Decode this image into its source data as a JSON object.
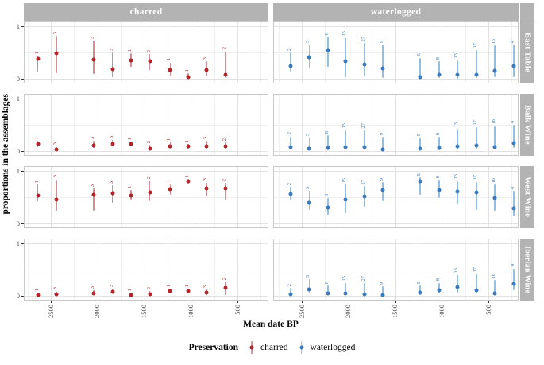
{
  "chart_data": {
    "type": "pointrange",
    "col_facets": [
      "charred",
      "waterlogged"
    ],
    "row_facets": [
      "East Table",
      "Balk Wine",
      "West Wine",
      "Iberian Wine"
    ],
    "x_label": "Mean date BP",
    "y_label": "proportions in the assemblages",
    "x_ticks": [
      2500,
      2000,
      1500,
      1000,
      500
    ],
    "x_minor_ticks": [
      2750,
      2250,
      1750,
      1250,
      750,
      250
    ],
    "y_ticks": [
      1,
      0
    ],
    "y_minor_ticks": [
      0.5
    ],
    "ylim": [
      0,
      1
    ],
    "strip_color": "#b3b3b3",
    "series": {
      "charred": {
        "label": "charred",
        "color": "#b22428",
        "bar_color": "#d28e92",
        "x_bp": [
          2640,
          2440,
          2040,
          1840,
          1640,
          1440,
          1220,
          1030,
          830,
          630
        ],
        "n": [
          1,
          3,
          3,
          3,
          1,
          2,
          1,
          1,
          3,
          2
        ]
      },
      "waterlogged": {
        "label": "waterlogged",
        "color": "#3a7bbf",
        "bar_color": "#93bfe2",
        "x_bp": [
          2620,
          2420,
          2220,
          2030,
          1830,
          1630,
          1230,
          1030,
          830,
          630,
          430,
          230
        ],
        "n": [
          2,
          3,
          8,
          15,
          27,
          9,
          5,
          8,
          13,
          17,
          16,
          4
        ]
      }
    },
    "panels": [
      {
        "row": "East Table",
        "charred": {
          "v": [
            0.38,
            0.49,
            0.36,
            0.18,
            0.35,
            0.33,
            0.17,
            0.03,
            0.17,
            0.07
          ],
          "lo": [
            0.13,
            0.1,
            0.09,
            0.03,
            0.23,
            0.17,
            0.06,
            0.0,
            0.05,
            0.01
          ],
          "hi": [
            0.44,
            0.82,
            0.73,
            0.5,
            0.48,
            0.47,
            0.31,
            0.1,
            0.33,
            0.52
          ]
        },
        "waterlogged": {
          "v": [
            0.24,
            0.41,
            0.54,
            0.33,
            0.27,
            0.2,
            0.03,
            0.08,
            0.07,
            0.08,
            0.15,
            0.25
          ],
          "lo": [
            0.13,
            0.2,
            0.23,
            0.03,
            0.04,
            0.02,
            0.0,
            0.01,
            0.0,
            0.01,
            0.03,
            0.03
          ],
          "hi": [
            0.5,
            0.65,
            0.8,
            0.78,
            0.68,
            0.65,
            0.4,
            0.33,
            0.35,
            0.55,
            0.63,
            0.65
          ]
        }
      },
      {
        "row": "Balk Wine",
        "charred": {
          "v": [
            0.13,
            0.03,
            0.1,
            0.14,
            0.14,
            0.05,
            0.09,
            0.09,
            0.09,
            0.09
          ],
          "lo": [
            0.07,
            0.0,
            0.06,
            0.09,
            0.1,
            0.01,
            0.05,
            0.05,
            0.05,
            0.04
          ],
          "hi": [
            0.2,
            0.08,
            0.19,
            0.21,
            0.18,
            0.12,
            0.16,
            0.14,
            0.19,
            0.16
          ]
        },
        "waterlogged": {
          "v": [
            0.07,
            0.05,
            0.06,
            0.08,
            0.07,
            0.03,
            0.05,
            0.06,
            0.09,
            0.11,
            0.08,
            0.15
          ],
          "lo": [
            0.03,
            0.02,
            0.02,
            0.03,
            0.03,
            0.01,
            0.02,
            0.02,
            0.03,
            0.04,
            0.03,
            0.06
          ],
          "hi": [
            0.28,
            0.25,
            0.3,
            0.4,
            0.4,
            0.27,
            0.25,
            0.27,
            0.42,
            0.46,
            0.47,
            0.5
          ]
        }
      },
      {
        "row": "West Wine",
        "charred": {
          "v": [
            0.53,
            0.46,
            0.54,
            0.58,
            0.53,
            0.59,
            0.65,
            0.8,
            0.66,
            0.66
          ],
          "lo": [
            0.42,
            0.24,
            0.24,
            0.4,
            0.45,
            0.42,
            0.55,
            0.76,
            0.52,
            0.46
          ],
          "hi": [
            0.74,
            0.84,
            0.67,
            0.73,
            0.63,
            0.82,
            0.75,
            0.84,
            0.78,
            0.77
          ]
        },
        "waterlogged": {
          "v": [
            0.56,
            0.4,
            0.3,
            0.45,
            0.52,
            0.63,
            0.8,
            0.64,
            0.6,
            0.59,
            0.48,
            0.29
          ],
          "lo": [
            0.45,
            0.26,
            0.17,
            0.19,
            0.32,
            0.43,
            0.55,
            0.48,
            0.38,
            0.26,
            0.24,
            0.14
          ],
          "hi": [
            0.69,
            0.62,
            0.48,
            0.74,
            0.71,
            0.79,
            0.88,
            0.83,
            0.81,
            0.79,
            0.74,
            0.62
          ]
        }
      },
      {
        "row": "Iberian Wine",
        "charred": {
          "v": [
            0.02,
            0.03,
            0.05,
            0.08,
            0.01,
            0.03,
            0.09,
            0.09,
            0.06,
            0.15
          ],
          "lo": [
            0.0,
            0.01,
            0.02,
            0.04,
            0.0,
            0.0,
            0.05,
            0.05,
            0.02,
            0.02
          ],
          "hi": [
            0.06,
            0.08,
            0.1,
            0.13,
            0.05,
            0.09,
            0.14,
            0.14,
            0.12,
            0.27
          ]
        },
        "waterlogged": {
          "v": [
            0.03,
            0.12,
            0.04,
            0.04,
            0.03,
            0.02,
            0.06,
            0.11,
            0.16,
            0.11,
            0.05,
            0.23
          ],
          "lo": [
            0.0,
            0.04,
            0.01,
            0.01,
            0.01,
            0.0,
            0.02,
            0.05,
            0.06,
            0.04,
            0.02,
            0.11
          ],
          "hi": [
            0.15,
            0.32,
            0.2,
            0.25,
            0.25,
            0.18,
            0.2,
            0.25,
            0.4,
            0.42,
            0.3,
            0.52
          ]
        }
      }
    ]
  },
  "legend": {
    "title": "Preservation",
    "items": [
      {
        "label": "charred"
      },
      {
        "label": "waterlogged"
      }
    ]
  }
}
